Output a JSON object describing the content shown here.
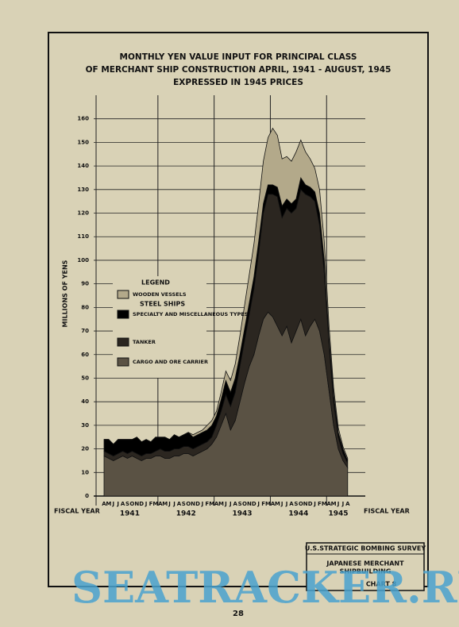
{
  "chart_data": {
    "type": "stacked-area",
    "title": [
      "MONTHLY YEN VALUE INPUT FOR PRINCIPAL CLASS",
      "OF MERCHANT SHIP CONSTRUCTION  APRIL, 1941 - AUGUST, 1945",
      "EXPRESSED IN 1945 PRICES"
    ],
    "y_label": "MILLIONS OF YENS",
    "x_label": "FISCAL YEAR",
    "categories": [
      "A",
      "M",
      "J",
      "J",
      "A",
      "S",
      "O",
      "N",
      "D",
      "J",
      "F",
      "M",
      "A",
      "M",
      "J",
      "J",
      "A",
      "S",
      "O",
      "N",
      "D",
      "J",
      "F",
      "M",
      "A",
      "M",
      "J",
      "J",
      "A",
      "S",
      "O",
      "N",
      "D",
      "J",
      "F",
      "M",
      "A",
      "M",
      "J",
      "J",
      "A",
      "S",
      "O",
      "N",
      "D",
      "J",
      "F",
      "M",
      "A",
      "M",
      "J",
      "J",
      "A"
    ],
    "fiscal_years": [
      "1941",
      "1942",
      "1943",
      "1944",
      "1945"
    ],
    "series": [
      {
        "name": "CARGO AND ORE CARRIER",
        "color": "#5a5244",
        "values": [
          17,
          16,
          15,
          16,
          17,
          16,
          17,
          16,
          15,
          16,
          16,
          17,
          17,
          16,
          16,
          17,
          17,
          18,
          18,
          17,
          18,
          19,
          20,
          22,
          25,
          30,
          35,
          28,
          32,
          40,
          48,
          55,
          60,
          68,
          75,
          78,
          76,
          72,
          68,
          72,
          65,
          70,
          75,
          68,
          72,
          75,
          70,
          60,
          45,
          30,
          20,
          15,
          12
        ]
      },
      {
        "name": "TANKER",
        "color": "#2b2620",
        "values": [
          2,
          2,
          2,
          2,
          2,
          2,
          2,
          2,
          2,
          2,
          2,
          2,
          3,
          3,
          3,
          3,
          3,
          3,
          3,
          3,
          3,
          3,
          3,
          3,
          5,
          6,
          8,
          10,
          12,
          15,
          18,
          22,
          28,
          35,
          45,
          50,
          52,
          55,
          50,
          50,
          55,
          52,
          55,
          60,
          55,
          50,
          45,
          35,
          20,
          10,
          5,
          3,
          2
        ]
      },
      {
        "name": "SPECIALTY AND MISCELLANEOUS TYPES",
        "color": "#000000",
        "values": [
          5,
          6,
          5,
          6,
          5,
          6,
          5,
          7,
          6,
          6,
          5,
          6,
          5,
          6,
          5,
          6,
          5,
          5,
          6,
          5,
          5,
          5,
          5,
          5,
          4,
          5,
          6,
          6,
          6,
          5,
          5,
          5,
          5,
          5,
          4,
          4,
          4,
          4,
          5,
          4,
          4,
          4,
          5,
          4,
          4,
          4,
          5,
          5,
          3,
          3,
          2,
          2,
          1
        ]
      },
      {
        "name": "WOODEN VESSELS",
        "color": "#b3a98a",
        "values": [
          0,
          0,
          0,
          0,
          0,
          0,
          0,
          0,
          0,
          0,
          0,
          0,
          0,
          0,
          0,
          0,
          0,
          0,
          0,
          1,
          1,
          1,
          2,
          2,
          2,
          3,
          4,
          5,
          6,
          8,
          10,
          12,
          14,
          16,
          18,
          20,
          24,
          22,
          20,
          18,
          18,
          20,
          16,
          14,
          12,
          10,
          10,
          8,
          5,
          3,
          2,
          1,
          1
        ]
      }
    ],
    "legend_title": "LEGEND",
    "legend_group": "STEEL SHIPS",
    "ylim": [
      0,
      170
    ],
    "yticks": [
      0,
      10,
      20,
      30,
      40,
      50,
      60,
      70,
      80,
      90,
      100,
      110,
      120,
      130,
      140,
      150,
      160
    ],
    "grid": true,
    "source_box": [
      "U.S.STRATEGIC BOMBING SURVEY",
      "JAPANESE MERCHANT",
      "SHIPBUILDING",
      "CHART 8"
    ],
    "page_number": "28",
    "watermark": "SEATRACKER.RU"
  }
}
